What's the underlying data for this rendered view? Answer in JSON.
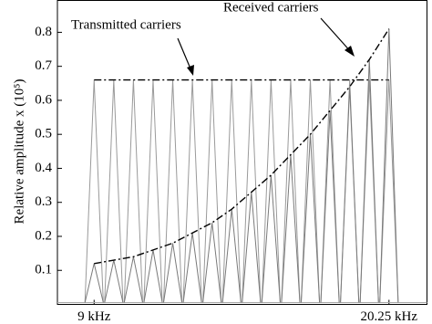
{
  "chart_data": {
    "type": "carrier-spectrum",
    "y_label": "Relative amplitude x (10⁵)",
    "x": [
      9,
      9.75,
      10.5,
      11.25,
      12,
      12.75,
      13.5,
      14.25,
      15,
      15.75,
      16.5,
      17.25,
      18,
      18.75,
      19.5,
      20.25
    ],
    "series": [
      {
        "name": "Transmitted carriers",
        "color": "#9a9a9a",
        "values": [
          0.66,
          0.66,
          0.66,
          0.66,
          0.66,
          0.66,
          0.66,
          0.66,
          0.66,
          0.66,
          0.66,
          0.66,
          0.66,
          0.66,
          0.66,
          0.66
        ]
      },
      {
        "name": "Received carriers",
        "color": "#7a7a7a",
        "values": [
          0.12,
          0.13,
          0.14,
          0.16,
          0.18,
          0.21,
          0.24,
          0.28,
          0.33,
          0.38,
          0.44,
          0.5,
          0.57,
          0.64,
          0.72,
          0.81
        ]
      }
    ],
    "xlim": [
      7.6,
      21.7
    ],
    "xticks": [
      {
        "value": 9,
        "label": "9 kHz"
      },
      {
        "value": 20.25,
        "label": "20.25 kHz"
      }
    ],
    "ylim": [
      0,
      0.895
    ],
    "yticks": [
      0.1,
      0.2,
      0.3,
      0.4,
      0.5,
      0.6,
      0.7,
      0.8
    ]
  }
}
